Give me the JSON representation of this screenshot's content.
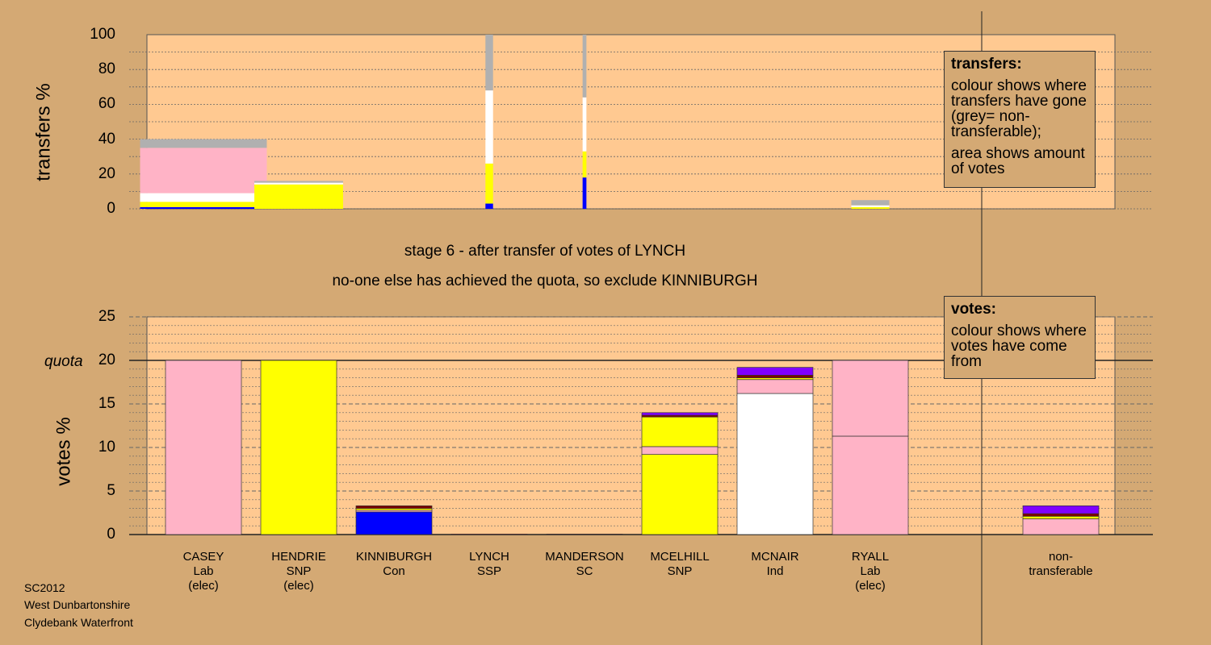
{
  "stage": {
    "line1": "stage 6 - after transfer of votes of LYNCH",
    "line2": "no-one else has achieved the quota, so exclude KINNIBURGH"
  },
  "legend_transfers": {
    "title": "transfers:",
    "lines": [
      "colour shows where transfers have gone (grey= non-transferable);",
      "area shows amount of votes"
    ]
  },
  "legend_votes": {
    "title": "votes:",
    "lines": [
      "colour shows where votes have come from"
    ]
  },
  "footer": [
    "SC2012",
    "West Dunbartonshire",
    "Clydebank Waterfront"
  ],
  "colors": {
    "Lab": "#ffb3c6",
    "SNP": "#ffff00",
    "Con": "#0000ff",
    "SSP": "#ff0000",
    "SC": "#800000",
    "Ind": "#ffffff",
    "purple": "#8000ff",
    "nontransferable": "#b0b0b0",
    "plot_bg": "#ffc991",
    "page_bg": "#d4a974"
  },
  "chart_data": [
    {
      "type": "bar",
      "ylabel": "transfers %",
      "ylim": [
        0,
        100
      ],
      "yticks": [
        0,
        20,
        40,
        60,
        80,
        100
      ],
      "grid": true,
      "bars": [
        {
          "target": "CASEY",
          "width": 1.0,
          "segments": [
            {
              "party": "Con",
              "value": 1
            },
            {
              "party": "SNP",
              "value": 3
            },
            {
              "party": "Ind",
              "value": 5
            },
            {
              "party": "Lab",
              "value": 26
            },
            {
              "party": "nontransferable",
              "value": 5
            }
          ]
        },
        {
          "target": "HENDRIE",
          "width": 0.7,
          "segments": [
            {
              "party": "SNP",
              "value": 14
            },
            {
              "party": "Ind",
              "value": 1
            },
            {
              "party": "nontransferable",
              "value": 1
            }
          ]
        },
        {
          "target": "LYNCH",
          "width": 0.06,
          "segments": [
            {
              "party": "Con",
              "value": 3
            },
            {
              "party": "SNP",
              "value": 23
            },
            {
              "party": "Ind",
              "value": 42
            },
            {
              "party": "nontransferable",
              "value": 32
            }
          ]
        },
        {
          "target": "MANDERSON",
          "width": 0.03,
          "segments": [
            {
              "party": "Con",
              "value": 18
            },
            {
              "party": "SNP",
              "value": 15
            },
            {
              "party": "Ind",
              "value": 31
            },
            {
              "party": "nontransferable",
              "value": 36
            }
          ]
        },
        {
          "target": "RYALL",
          "width": 0.3,
          "segments": [
            {
              "party": "SNP",
              "value": 1
            },
            {
              "party": "Ind",
              "value": 1
            },
            {
              "party": "nontransferable",
              "value": 3
            }
          ]
        }
      ]
    },
    {
      "type": "bar",
      "ylabel": "votes %",
      "ylim": [
        0,
        25
      ],
      "yticks": [
        0,
        5,
        10,
        15,
        20,
        25
      ],
      "quota": 20,
      "quota_label": "quota",
      "grid": true,
      "candidates": [
        {
          "name": "CASEY",
          "party": "Lab",
          "status": "(elec)"
        },
        {
          "name": "HENDRIE",
          "party": "SNP",
          "status": "(elec)"
        },
        {
          "name": "KINNIBURGH",
          "party": "Con",
          "status": ""
        },
        {
          "name": "LYNCH",
          "party": "SSP",
          "status": ""
        },
        {
          "name": "MANDERSON",
          "party": "SC",
          "status": ""
        },
        {
          "name": "MCELHILL",
          "party": "SNP",
          "status": ""
        },
        {
          "name": "MCNAIR",
          "party": "Ind",
          "status": ""
        },
        {
          "name": "RYALL",
          "party": "Lab",
          "status": "(elec)"
        },
        {
          "name": "",
          "party": "",
          "status": ""
        },
        {
          "name": "non-",
          "party": "transferable",
          "status": ""
        }
      ],
      "bars": [
        [
          {
            "party": "Lab",
            "value": 20
          }
        ],
        [
          {
            "party": "SNP",
            "value": 20
          }
        ],
        [
          {
            "party": "Con",
            "value": 2.6
          },
          {
            "party": "Lab",
            "value": 0.2
          },
          {
            "party": "SNP",
            "value": 0.2
          },
          {
            "party": "SC",
            "value": 0.3
          }
        ],
        [
          {
            "party": "SSP",
            "value": 0.05
          }
        ],
        [
          {
            "party": "SC",
            "value": 0.05
          }
        ],
        [
          {
            "party": "SNP",
            "value": 9.2
          },
          {
            "party": "Lab",
            "value": 0.9
          },
          {
            "party": "SNP",
            "value": 3.4
          },
          {
            "party": "SC",
            "value": 0.2
          },
          {
            "party": "purple",
            "value": 0.3
          }
        ],
        [
          {
            "party": "Ind",
            "value": 16.2
          },
          {
            "party": "Lab",
            "value": 1.6
          },
          {
            "party": "SNP",
            "value": 0.2
          },
          {
            "party": "SC",
            "value": 0.3
          },
          {
            "party": "purple",
            "value": 0.9
          }
        ],
        [
          {
            "party": "Lab",
            "value": 11.3
          },
          {
            "party": "Lab",
            "value": 8.7
          }
        ],
        [],
        [
          {
            "party": "Lab",
            "value": 1.8
          },
          {
            "party": "SNP",
            "value": 0.3
          },
          {
            "party": "SC",
            "value": 0.3
          },
          {
            "party": "purple",
            "value": 0.9
          }
        ]
      ]
    }
  ]
}
